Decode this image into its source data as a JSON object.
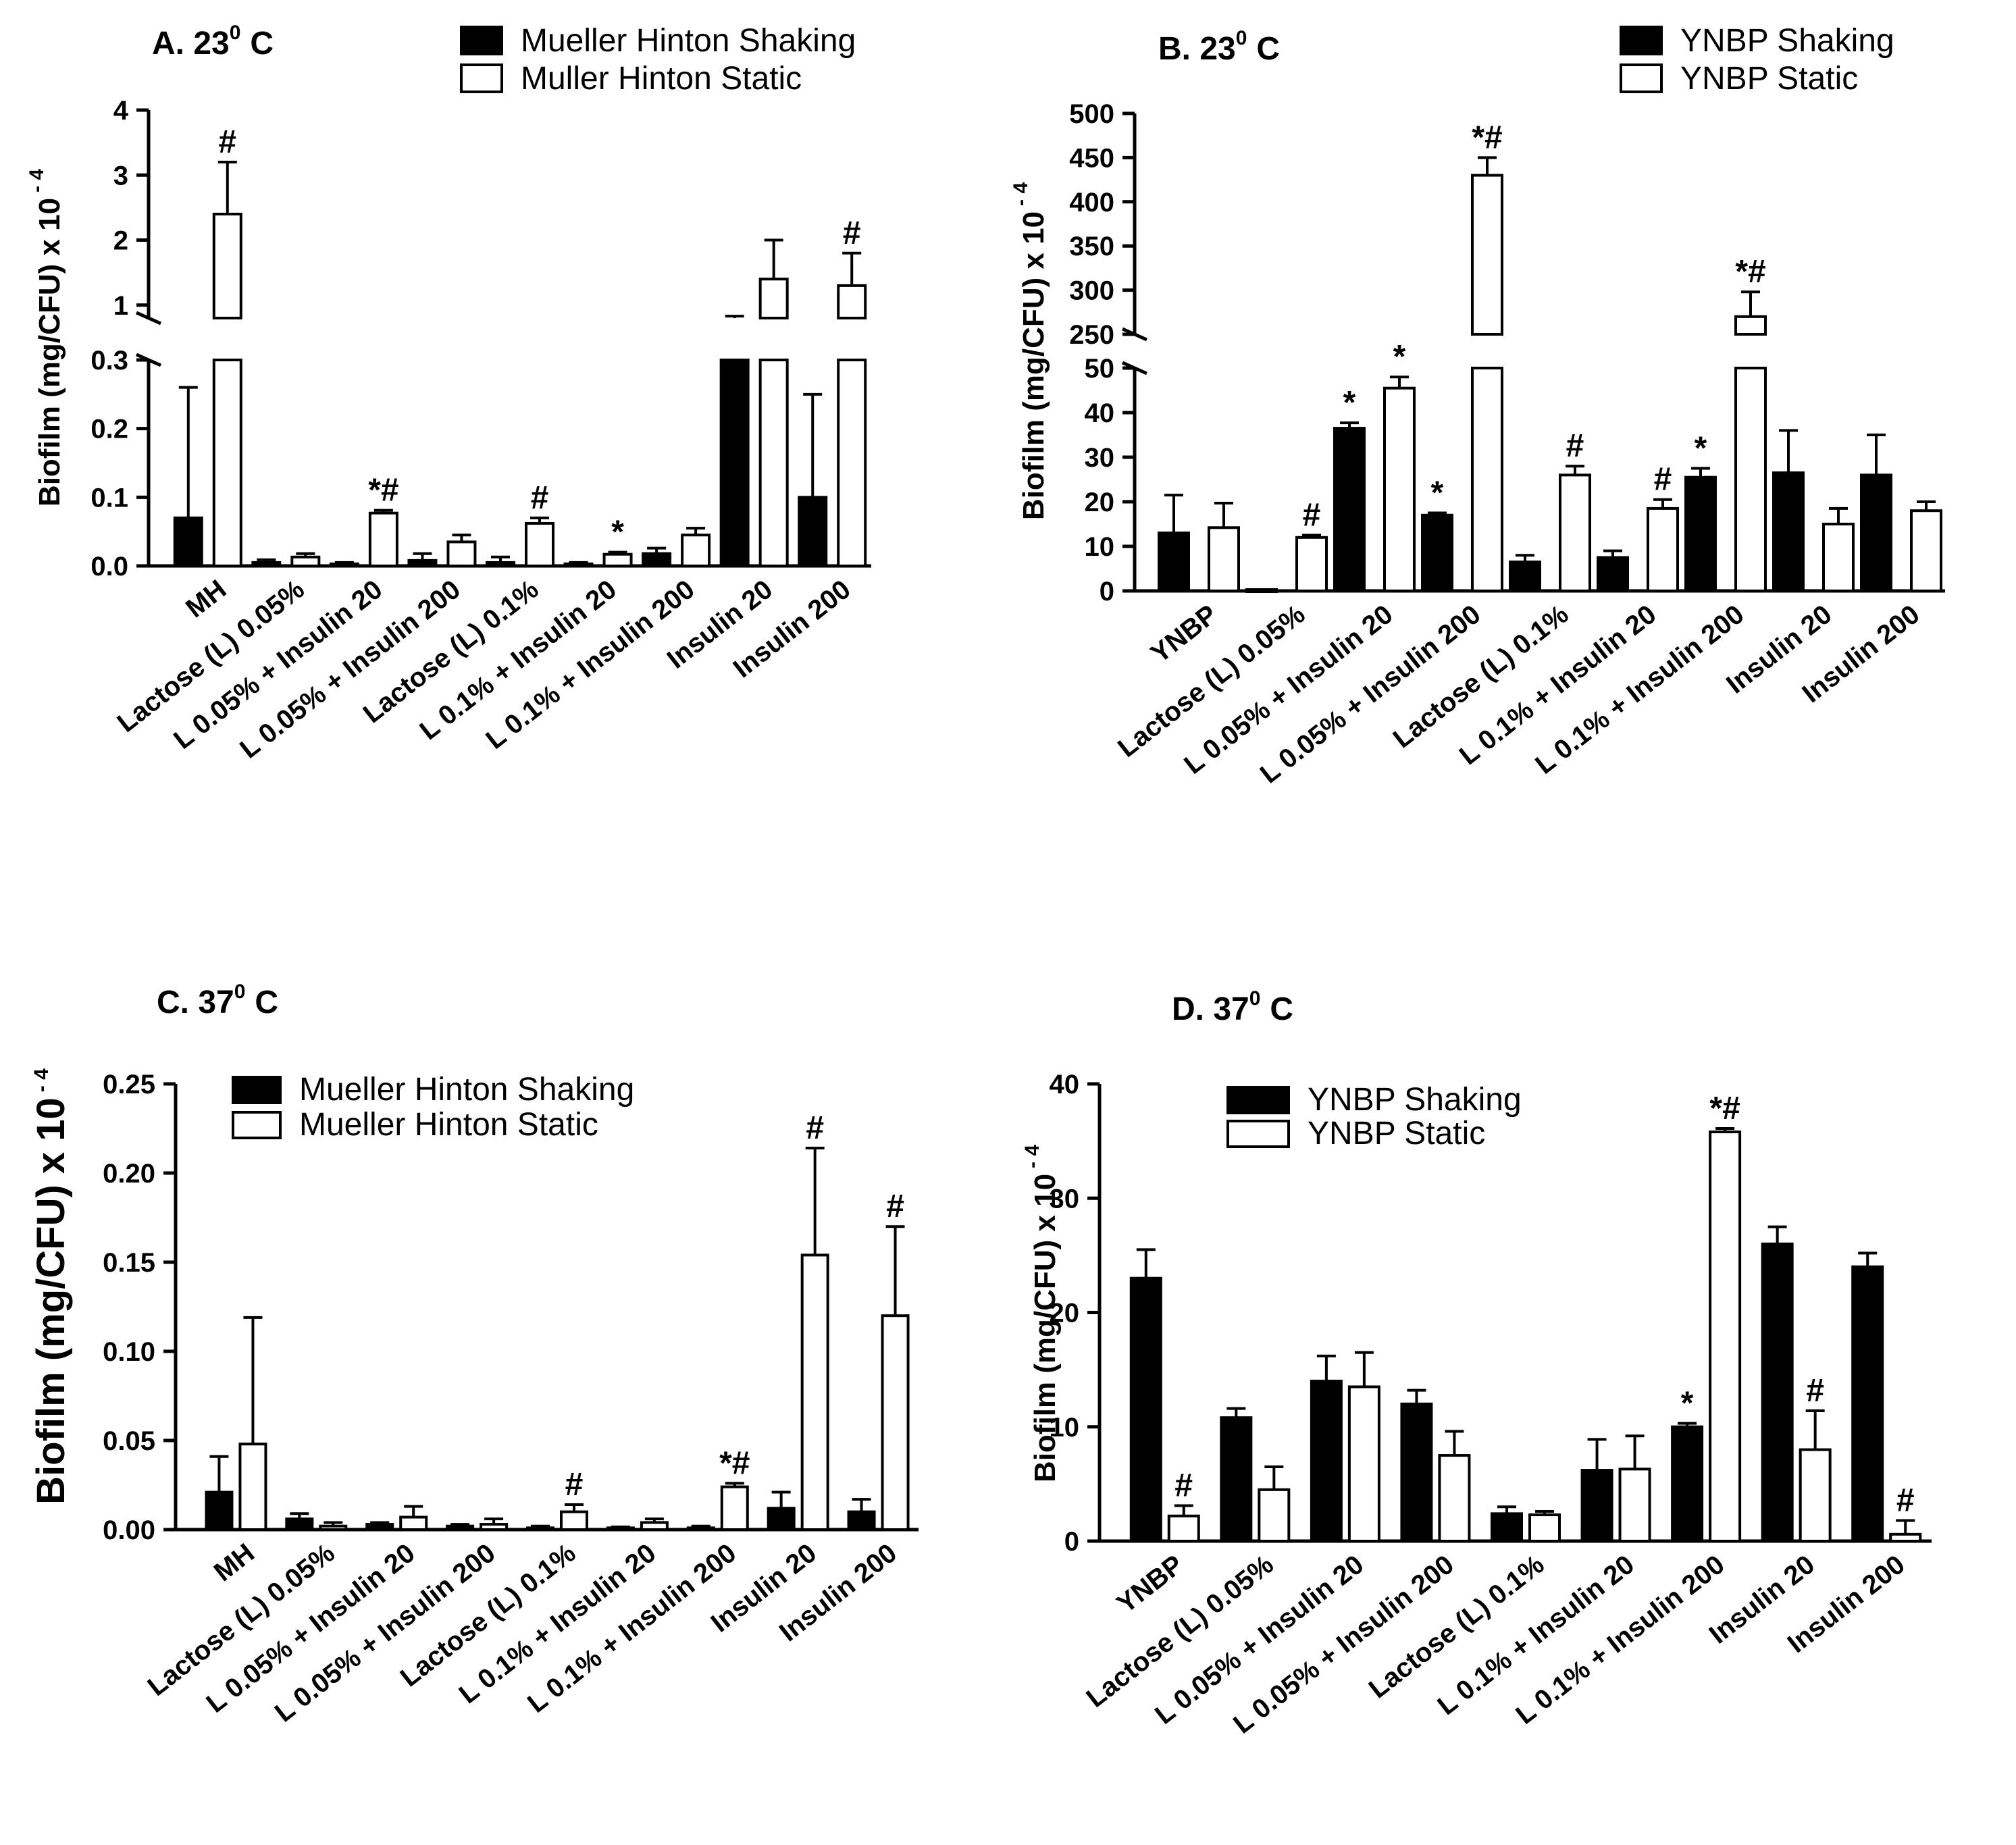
{
  "chart_data": [
    {
      "id": "A",
      "type": "bar",
      "title": "A. 23",
      "title_superscript": "0",
      "title_unit": "C",
      "ylabel": "Biofilm (mg/CFU) x 10",
      "ylabel_superscript": "- 4",
      "axis_break": true,
      "lower_range": [
        0,
        0.3
      ],
      "upper_range": [
        0.8,
        4
      ],
      "lower_ticks": [
        "0.0",
        "0.1",
        "0.2",
        "0.3"
      ],
      "lower_tick_values": [
        0,
        0.1,
        0.2,
        0.3
      ],
      "upper_ticks": [
        "1",
        "2",
        "3",
        "4"
      ],
      "upper_tick_values": [
        1,
        2,
        3,
        4
      ],
      "categories": [
        "MH",
        "Lactose (L) 0.05%",
        "L 0.05% + Insulin 20",
        "L 0.05% + Insulin 200",
        "Lactose (L) 0.1%",
        "L 0.1% + Insulin 20",
        "L 0.1% + Insulin 200",
        "Insulin 20",
        "Insulin 200"
      ],
      "series": [
        {
          "name": "Mueller Hinton Shaking",
          "fill": "#000000",
          "values": [
            0.07,
            0.005,
            0.003,
            0.008,
            0.005,
            0.003,
            0.018,
            0.65,
            0.1
          ],
          "errors": [
            0.19,
            0.004,
            0.002,
            0.01,
            0.008,
            0.002,
            0.008,
            0.18,
            0.15
          ],
          "annotations": [
            "",
            "",
            "",
            "",
            "",
            "",
            "",
            "",
            ""
          ]
        },
        {
          "name": "Muller Hinton Static",
          "fill": "#ffffff",
          "values": [
            2.4,
            0.013,
            0.077,
            0.035,
            0.062,
            0.017,
            0.045,
            1.4,
            1.3
          ],
          "errors": [
            0.8,
            0.005,
            0.004,
            0.01,
            0.008,
            0.003,
            0.01,
            0.6,
            0.5
          ],
          "annotations": [
            "#",
            "",
            "*#",
            "",
            "#",
            "*",
            "",
            "",
            "#"
          ]
        }
      ],
      "legend_labels": [
        "Mueller Hinton Shaking",
        "Muller Hinton Static"
      ]
    },
    {
      "id": "B",
      "type": "bar",
      "title": "B. 23",
      "title_superscript": "0",
      "title_unit": "C",
      "ylabel": "Biofilm (mg/CFU) x 10",
      "ylabel_superscript": "- 4",
      "axis_break": true,
      "lower_range": [
        0,
        50
      ],
      "upper_range": [
        250,
        500
      ],
      "lower_ticks": [
        "0",
        "10",
        "20",
        "30",
        "40",
        "50"
      ],
      "lower_tick_values": [
        0,
        10,
        20,
        30,
        40,
        50
      ],
      "upper_ticks": [
        "250",
        "300",
        "350",
        "400",
        "450",
        "500"
      ],
      "upper_tick_values": [
        250,
        300,
        350,
        400,
        450,
        500
      ],
      "categories": [
        "YNBP",
        "Lactose (L) 0.05%",
        "L 0.05% + Insulin 20",
        "L 0.05% + Insulin 200",
        "Lactose (L) 0.1%",
        "L 0.1% + Insulin 20",
        "L 0.1% + Insulin 200",
        "Insulin 20",
        "Insulin 200"
      ],
      "series": [
        {
          "name": "YNBP Shaking",
          "fill": "#000000",
          "values": [
            13,
            0.3,
            36.5,
            17,
            6.5,
            7.5,
            25.5,
            26.5,
            26
          ],
          "errors": [
            8.5,
            0,
            1.2,
            0.5,
            1.5,
            1.5,
            2,
            9.5,
            9
          ],
          "annotations": [
            "",
            "",
            "*",
            "*",
            "",
            "",
            "*",
            "",
            ""
          ]
        },
        {
          "name": "YNBP Static",
          "fill": "#ffffff",
          "values": [
            14.2,
            12,
            45.5,
            430,
            26,
            18.5,
            270,
            15,
            18
          ],
          "errors": [
            5.5,
            0.5,
            2.5,
            20,
            2,
            2,
            28,
            3.5,
            2
          ],
          "annotations": [
            "",
            "#",
            "*",
            "*#",
            "#",
            "#",
            "*#",
            "",
            ""
          ]
        }
      ],
      "legend_labels": [
        "YNBP Shaking",
        "YNBP Static"
      ]
    },
    {
      "id": "C",
      "type": "bar",
      "title": "C. 37",
      "title_superscript": "0",
      "title_unit": "C",
      "ylabel": "Biofilm (mg/CFU) x 10",
      "ylabel_superscript": "- 4",
      "axis_break": false,
      "ylim": [
        0,
        0.25
      ],
      "ticks": [
        "0.00",
        "0.05",
        "0.10",
        "0.15",
        "0.20",
        "0.25"
      ],
      "tick_values": [
        0,
        0.05,
        0.1,
        0.15,
        0.2,
        0.25
      ],
      "categories": [
        "MH",
        "Lactose (L) 0.05%",
        "L 0.05% + Insulin 20",
        "L 0.05% + Insulin 200",
        "Lactose (L) 0.1%",
        "L 0.1% + Insulin 20",
        "L 0.1% + Insulin 200",
        "Insulin 20",
        "Insulin 200"
      ],
      "series": [
        {
          "name": "Mueller Hinton Shaking",
          "fill": "#000000",
          "values": [
            0.021,
            0.006,
            0.003,
            0.002,
            0.001,
            0.001,
            0.001,
            0.012,
            0.01
          ],
          "errors": [
            0.02,
            0.003,
            0.001,
            0.001,
            0.001,
            0.0005,
            0.001,
            0.009,
            0.007
          ],
          "annotations": [
            "",
            "",
            "",
            "",
            "",
            "",
            "",
            "",
            ""
          ]
        },
        {
          "name": "Mueller Hinton Static",
          "fill": "#ffffff",
          "values": [
            0.048,
            0.002,
            0.007,
            0.003,
            0.01,
            0.004,
            0.024,
            0.154,
            0.12
          ],
          "errors": [
            0.071,
            0.002,
            0.006,
            0.003,
            0.004,
            0.002,
            0.002,
            0.06,
            0.05
          ],
          "annotations": [
            "",
            "",
            "",
            "",
            "#",
            "",
            "*#",
            "#",
            "#"
          ]
        }
      ],
      "legend_labels": [
        "Mueller Hinton Shaking",
        "Mueller Hinton Static"
      ]
    },
    {
      "id": "D",
      "type": "bar",
      "title": "D. 37",
      "title_superscript": "0",
      "title_unit": "C",
      "ylabel": "Biofilm (mg/CFU) x 10",
      "ylabel_superscript": "- 4",
      "axis_break": false,
      "ylim": [
        0,
        40
      ],
      "ticks": [
        "0",
        "10",
        "20",
        "30",
        "40"
      ],
      "tick_values": [
        0,
        10,
        20,
        30,
        40
      ],
      "categories": [
        "YNBP",
        "Lactose (L) 0.05%",
        "L 0.05% + Insulin 20",
        "L 0.05% + Insulin 200",
        "Lactose (L) 0.1%",
        "L 0.1% + Insulin 20",
        "L 0.1% + Insulin 200",
        "Insulin 20",
        "Insulin 200"
      ],
      "series": [
        {
          "name": "YNBP Shaking",
          "fill": "#000000",
          "values": [
            23,
            10.8,
            14,
            12,
            2.4,
            6.2,
            10,
            26,
            24
          ],
          "errors": [
            2.5,
            0.8,
            2.2,
            1.2,
            0.6,
            2.7,
            0.3,
            1.5,
            1.2
          ],
          "annotations": [
            "",
            "",
            "",
            "",
            "",
            "",
            "*",
            "",
            ""
          ]
        },
        {
          "name": "YNBP Static",
          "fill": "#ffffff",
          "values": [
            2.2,
            4.5,
            13.5,
            7.5,
            2.3,
            6.3,
            35.8,
            8,
            0.6
          ],
          "errors": [
            0.9,
            2,
            3,
            2.1,
            0.3,
            2.9,
            0.3,
            3.4,
            1.2
          ],
          "annotations": [
            "#",
            "",
            "",
            "",
            "",
            "",
            "*#",
            "#",
            "#"
          ]
        }
      ],
      "legend_labels": [
        "YNBP Shaking",
        "YNBP Static"
      ]
    }
  ]
}
